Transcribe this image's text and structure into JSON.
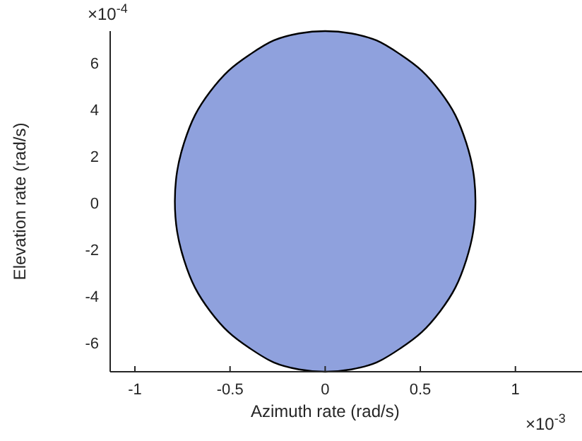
{
  "chart_data": {
    "type": "area",
    "xlabel": "Azimuth rate (rad/s)",
    "ylabel": "Elevation rate (rad/s)",
    "xlim": [
      -1.13,
      1.35
    ],
    "ylim": [
      -7.2,
      7.4
    ],
    "xticks": [
      -1,
      -0.5,
      0,
      0.5,
      1
    ],
    "yticks": [
      -6,
      -4,
      -2,
      0,
      2,
      4,
      6
    ],
    "annotations": [
      "×10$^{-4}$",
      "×10$^{-3}$"
    ],
    "grid": false,
    "series": [
      {
        "color": "#8fa1dd",
        "x": [
          0.79,
          0.778,
          0.742,
          0.684,
          0.605,
          0.508,
          0.395,
          0.27,
          0.137,
          0,
          -0.137,
          -0.27,
          -0.395,
          -0.508,
          -0.605,
          -0.684,
          -0.742,
          -0.778,
          -0.79,
          -0.778,
          -0.742,
          -0.684,
          -0.605,
          -0.508,
          -0.395,
          -0.27,
          -0.137,
          0,
          0.137,
          0.27,
          0.395,
          0.508,
          0.605,
          0.684,
          0.742,
          0.778
        ],
        "values": [
          0.1,
          1.4,
          2.6,
          3.8,
          4.8,
          5.7,
          6.4,
          7,
          7.3,
          7.4,
          7.3,
          7,
          6.4,
          5.7,
          4.8,
          3.8,
          2.6,
          1.4,
          0.1,
          -1.2,
          -2.4,
          -3.6,
          -4.6,
          -5.5,
          -6.2,
          -6.8,
          -7.1,
          -7.2,
          -7.1,
          -6.8,
          -6.2,
          -5.5,
          -4.6,
          -3.6,
          -2.4,
          -1.2
        ]
      }
    ]
  }
}
